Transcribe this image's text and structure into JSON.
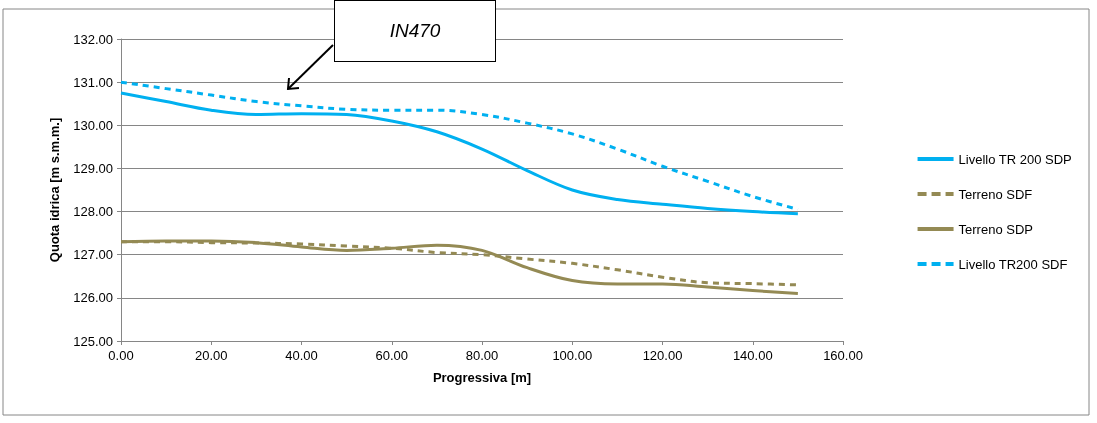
{
  "chart_data": {
    "type": "line",
    "xlabel": "Progressiva [m]",
    "ylabel": "Quota idrica [m s.m.m.]",
    "annotations": [
      "IN470"
    ],
    "x": [
      0,
      10,
      20,
      30,
      40,
      50,
      60,
      70,
      80,
      90,
      100,
      110,
      120,
      130,
      140,
      150
    ],
    "xlim": [
      0,
      160
    ],
    "xticks": [
      {
        "value": 0,
        "label": "0.00"
      },
      {
        "value": 20,
        "label": "20.00"
      },
      {
        "value": 40,
        "label": "40.00"
      },
      {
        "value": 60,
        "label": "60.00"
      },
      {
        "value": 80,
        "label": "80.00"
      },
      {
        "value": 100,
        "label": "100.00"
      },
      {
        "value": 120,
        "label": "120.00"
      },
      {
        "value": 140,
        "label": "140.00"
      },
      {
        "value": 160,
        "label": "160.00"
      }
    ],
    "ylim": [
      125,
      132
    ],
    "yticks": [
      {
        "value": 125,
        "label": "125.00"
      },
      {
        "value": 126,
        "label": "126.00"
      },
      {
        "value": 127,
        "label": "127.00"
      },
      {
        "value": 128,
        "label": "128.00"
      },
      {
        "value": 129,
        "label": "129.00"
      },
      {
        "value": 130,
        "label": "130.00"
      },
      {
        "value": 131,
        "label": "131.00"
      },
      {
        "value": 132,
        "label": "132.00"
      }
    ],
    "grid": "y",
    "legend": "right",
    "marker": "none",
    "series": [
      {
        "name": "Livello TR 200 SDP",
        "color": "#00b0f0",
        "line_style": "solid",
        "values": [
          130.75,
          130.55,
          130.35,
          130.25,
          130.27,
          130.25,
          130.1,
          129.85,
          129.45,
          128.95,
          128.5,
          128.28,
          128.17,
          128.07,
          128.0,
          127.95
        ]
      },
      {
        "name": "Terreno SDF",
        "color": "#948a54",
        "line_style": "dashed",
        "values": [
          127.3,
          127.3,
          127.28,
          127.27,
          127.25,
          127.2,
          127.15,
          127.05,
          127.0,
          126.9,
          126.8,
          126.65,
          126.48,
          126.35,
          126.33,
          126.3
        ]
      },
      {
        "name": "Terreno SDP",
        "color": "#948a54",
        "line_style": "solid",
        "values": [
          127.3,
          127.32,
          127.32,
          127.28,
          127.18,
          127.1,
          127.15,
          127.22,
          127.1,
          126.7,
          126.4,
          126.32,
          126.32,
          126.25,
          126.17,
          126.1
        ]
      },
      {
        "name": "Livello TR200 SDF",
        "color": "#00b0f0",
        "line_style": "dashed",
        "values": [
          131.0,
          130.85,
          130.7,
          130.55,
          130.45,
          130.37,
          130.35,
          130.35,
          130.25,
          130.05,
          129.8,
          129.45,
          129.05,
          128.7,
          128.35,
          128.05
        ]
      }
    ]
  }
}
